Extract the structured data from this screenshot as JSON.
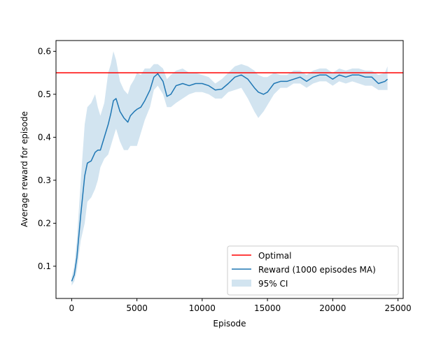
{
  "chart_data": {
    "type": "line",
    "title": "",
    "xlabel": "Episode",
    "ylabel": "Average reward for episode",
    "xlim": [
      -1200,
      25400
    ],
    "ylim": [
      0.025,
      0.625
    ],
    "xticks": [
      0,
      5000,
      10000,
      15000,
      20000,
      25000
    ],
    "yticks": [
      0.1,
      0.2,
      0.3,
      0.4,
      0.5,
      0.6
    ],
    "xtick_labels": [
      "0",
      "5000",
      "10000",
      "15000",
      "20000",
      "25000"
    ],
    "ytick_labels": [
      "0.1",
      "0.2",
      "0.3",
      "0.4",
      "0.5",
      "0.6"
    ],
    "grid": false,
    "legend_position": "lower-right",
    "optimal": {
      "name": "Optimal",
      "value": 0.55,
      "color": "#ff0000"
    },
    "series": [
      {
        "name": "Reward (1000 episodes MA)",
        "color": "#1f77b4",
        "x": [
          0,
          200,
          400,
          700,
          1000,
          1200,
          1500,
          1800,
          2000,
          2200,
          2500,
          2800,
          3000,
          3200,
          3400,
          3700,
          4000,
          4300,
          4500,
          4800,
          5000,
          5300,
          5600,
          6000,
          6300,
          6600,
          7000,
          7300,
          7600,
          8000,
          8500,
          9000,
          9500,
          10000,
          10500,
          11000,
          11500,
          12000,
          12500,
          13000,
          13500,
          14000,
          14300,
          14700,
          15000,
          15500,
          16000,
          16500,
          17000,
          17500,
          18000,
          18500,
          19000,
          19500,
          20000,
          20500,
          21000,
          21500,
          22000,
          22500,
          23000,
          23500,
          24000,
          24200
        ],
        "y": [
          0.065,
          0.08,
          0.12,
          0.22,
          0.31,
          0.34,
          0.345,
          0.365,
          0.37,
          0.37,
          0.4,
          0.43,
          0.455,
          0.485,
          0.49,
          0.46,
          0.445,
          0.435,
          0.45,
          0.46,
          0.465,
          0.47,
          0.485,
          0.51,
          0.54,
          0.548,
          0.53,
          0.495,
          0.5,
          0.52,
          0.525,
          0.52,
          0.525,
          0.525,
          0.52,
          0.51,
          0.512,
          0.525,
          0.54,
          0.545,
          0.535,
          0.515,
          0.505,
          0.5,
          0.505,
          0.525,
          0.53,
          0.53,
          0.535,
          0.54,
          0.53,
          0.54,
          0.545,
          0.545,
          0.535,
          0.545,
          0.54,
          0.545,
          0.545,
          0.54,
          0.54,
          0.525,
          0.53,
          0.535
        ]
      },
      {
        "name": "95% CI",
        "color": "#1f77b4",
        "opacity": 0.2,
        "x": [
          0,
          200,
          400,
          700,
          1000,
          1200,
          1500,
          1800,
          2000,
          2200,
          2500,
          2800,
          3000,
          3200,
          3400,
          3700,
          4000,
          4300,
          4500,
          4800,
          5000,
          5300,
          5600,
          6000,
          6300,
          6600,
          7000,
          7300,
          7600,
          8000,
          8500,
          9000,
          9500,
          10000,
          10500,
          11000,
          11500,
          12000,
          12500,
          13000,
          13500,
          14000,
          14300,
          14700,
          15000,
          15500,
          16000,
          16500,
          17000,
          17500,
          18000,
          18500,
          19000,
          19500,
          20000,
          20500,
          21000,
          21500,
          22000,
          22500,
          23000,
          23500,
          24000,
          24200
        ],
        "lower": [
          0.055,
          0.065,
          0.09,
          0.16,
          0.2,
          0.25,
          0.26,
          0.28,
          0.3,
          0.33,
          0.35,
          0.36,
          0.38,
          0.4,
          0.42,
          0.39,
          0.37,
          0.37,
          0.38,
          0.38,
          0.38,
          0.41,
          0.44,
          0.47,
          0.51,
          0.52,
          0.5,
          0.47,
          0.47,
          0.48,
          0.49,
          0.5,
          0.505,
          0.505,
          0.5,
          0.49,
          0.49,
          0.505,
          0.51,
          0.515,
          0.49,
          0.46,
          0.445,
          0.46,
          0.475,
          0.5,
          0.515,
          0.515,
          0.525,
          0.525,
          0.515,
          0.525,
          0.53,
          0.53,
          0.52,
          0.53,
          0.525,
          0.53,
          0.525,
          0.52,
          0.52,
          0.51,
          0.51,
          0.51
        ],
        "upper": [
          0.075,
          0.1,
          0.16,
          0.3,
          0.43,
          0.47,
          0.48,
          0.5,
          0.47,
          0.45,
          0.48,
          0.55,
          0.57,
          0.6,
          0.58,
          0.53,
          0.51,
          0.5,
          0.52,
          0.535,
          0.55,
          0.545,
          0.56,
          0.56,
          0.57,
          0.57,
          0.56,
          0.535,
          0.545,
          0.555,
          0.56,
          0.55,
          0.55,
          0.545,
          0.54,
          0.525,
          0.535,
          0.55,
          0.565,
          0.57,
          0.565,
          0.555,
          0.545,
          0.54,
          0.54,
          0.55,
          0.545,
          0.545,
          0.555,
          0.555,
          0.545,
          0.555,
          0.56,
          0.56,
          0.55,
          0.56,
          0.555,
          0.56,
          0.56,
          0.555,
          0.555,
          0.545,
          0.55,
          0.565
        ]
      }
    ]
  }
}
